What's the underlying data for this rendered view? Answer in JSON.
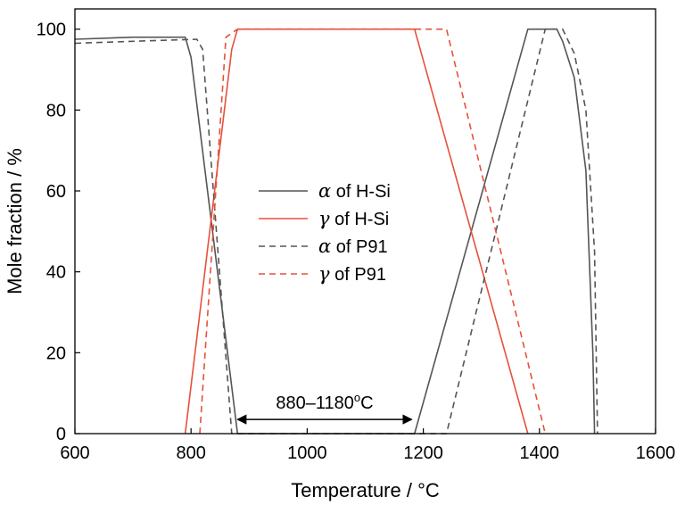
{
  "chart_data": {
    "type": "line",
    "xlabel": "Temperature / °C",
    "ylabel": "Mole fraction / %",
    "xlim": [
      600,
      1600
    ],
    "ylim": [
      0,
      105
    ],
    "xticks": [
      600,
      800,
      1000,
      1200,
      1400,
      1600
    ],
    "yticks": [
      0,
      20,
      40,
      60,
      80,
      100
    ],
    "grid": false,
    "legend_position": "center-left",
    "series": [
      {
        "name": "α of H-Si",
        "symbol": "α",
        "suffix": " of H-Si",
        "color": "#555555",
        "dash": "solid",
        "x": [
          600,
          700,
          790,
          800,
          880,
          1185,
          1380,
          1430,
          1440,
          1460,
          1480,
          1492,
          1495
        ],
        "y": [
          97.5,
          98,
          98,
          93,
          0,
          0,
          100,
          100,
          97,
          88,
          65,
          20,
          0
        ]
      },
      {
        "name": "γ of H-Si",
        "symbol": "γ",
        "suffix": " of H-Si",
        "color": "#e8503a",
        "dash": "solid",
        "x": [
          790,
          870,
          880,
          1185,
          1380
        ],
        "y": [
          0,
          95,
          100,
          100,
          0
        ]
      },
      {
        "name": "α of P91",
        "symbol": "α",
        "suffix": " of P91",
        "color": "#555555",
        "dash": "dashed",
        "x": [
          600,
          700,
          810,
          820,
          870,
          1240,
          1410,
          1440,
          1460,
          1480,
          1495,
          1500
        ],
        "y": [
          96.5,
          97,
          97.5,
          95,
          0,
          0,
          100,
          100,
          94,
          80,
          45,
          0
        ]
      },
      {
        "name": "γ of P91",
        "symbol": "γ",
        "suffix": " of P91",
        "color": "#e8503a",
        "dash": "dashed",
        "x": [
          815,
          860,
          880,
          1240,
          1410
        ],
        "y": [
          0,
          98,
          100,
          100,
          0
        ]
      }
    ],
    "annotation": {
      "text": "880–1180",
      "unit_sup": "o",
      "unit_tail": "C",
      "x_start": 880,
      "x_end": 1180,
      "y": 3.5
    }
  }
}
